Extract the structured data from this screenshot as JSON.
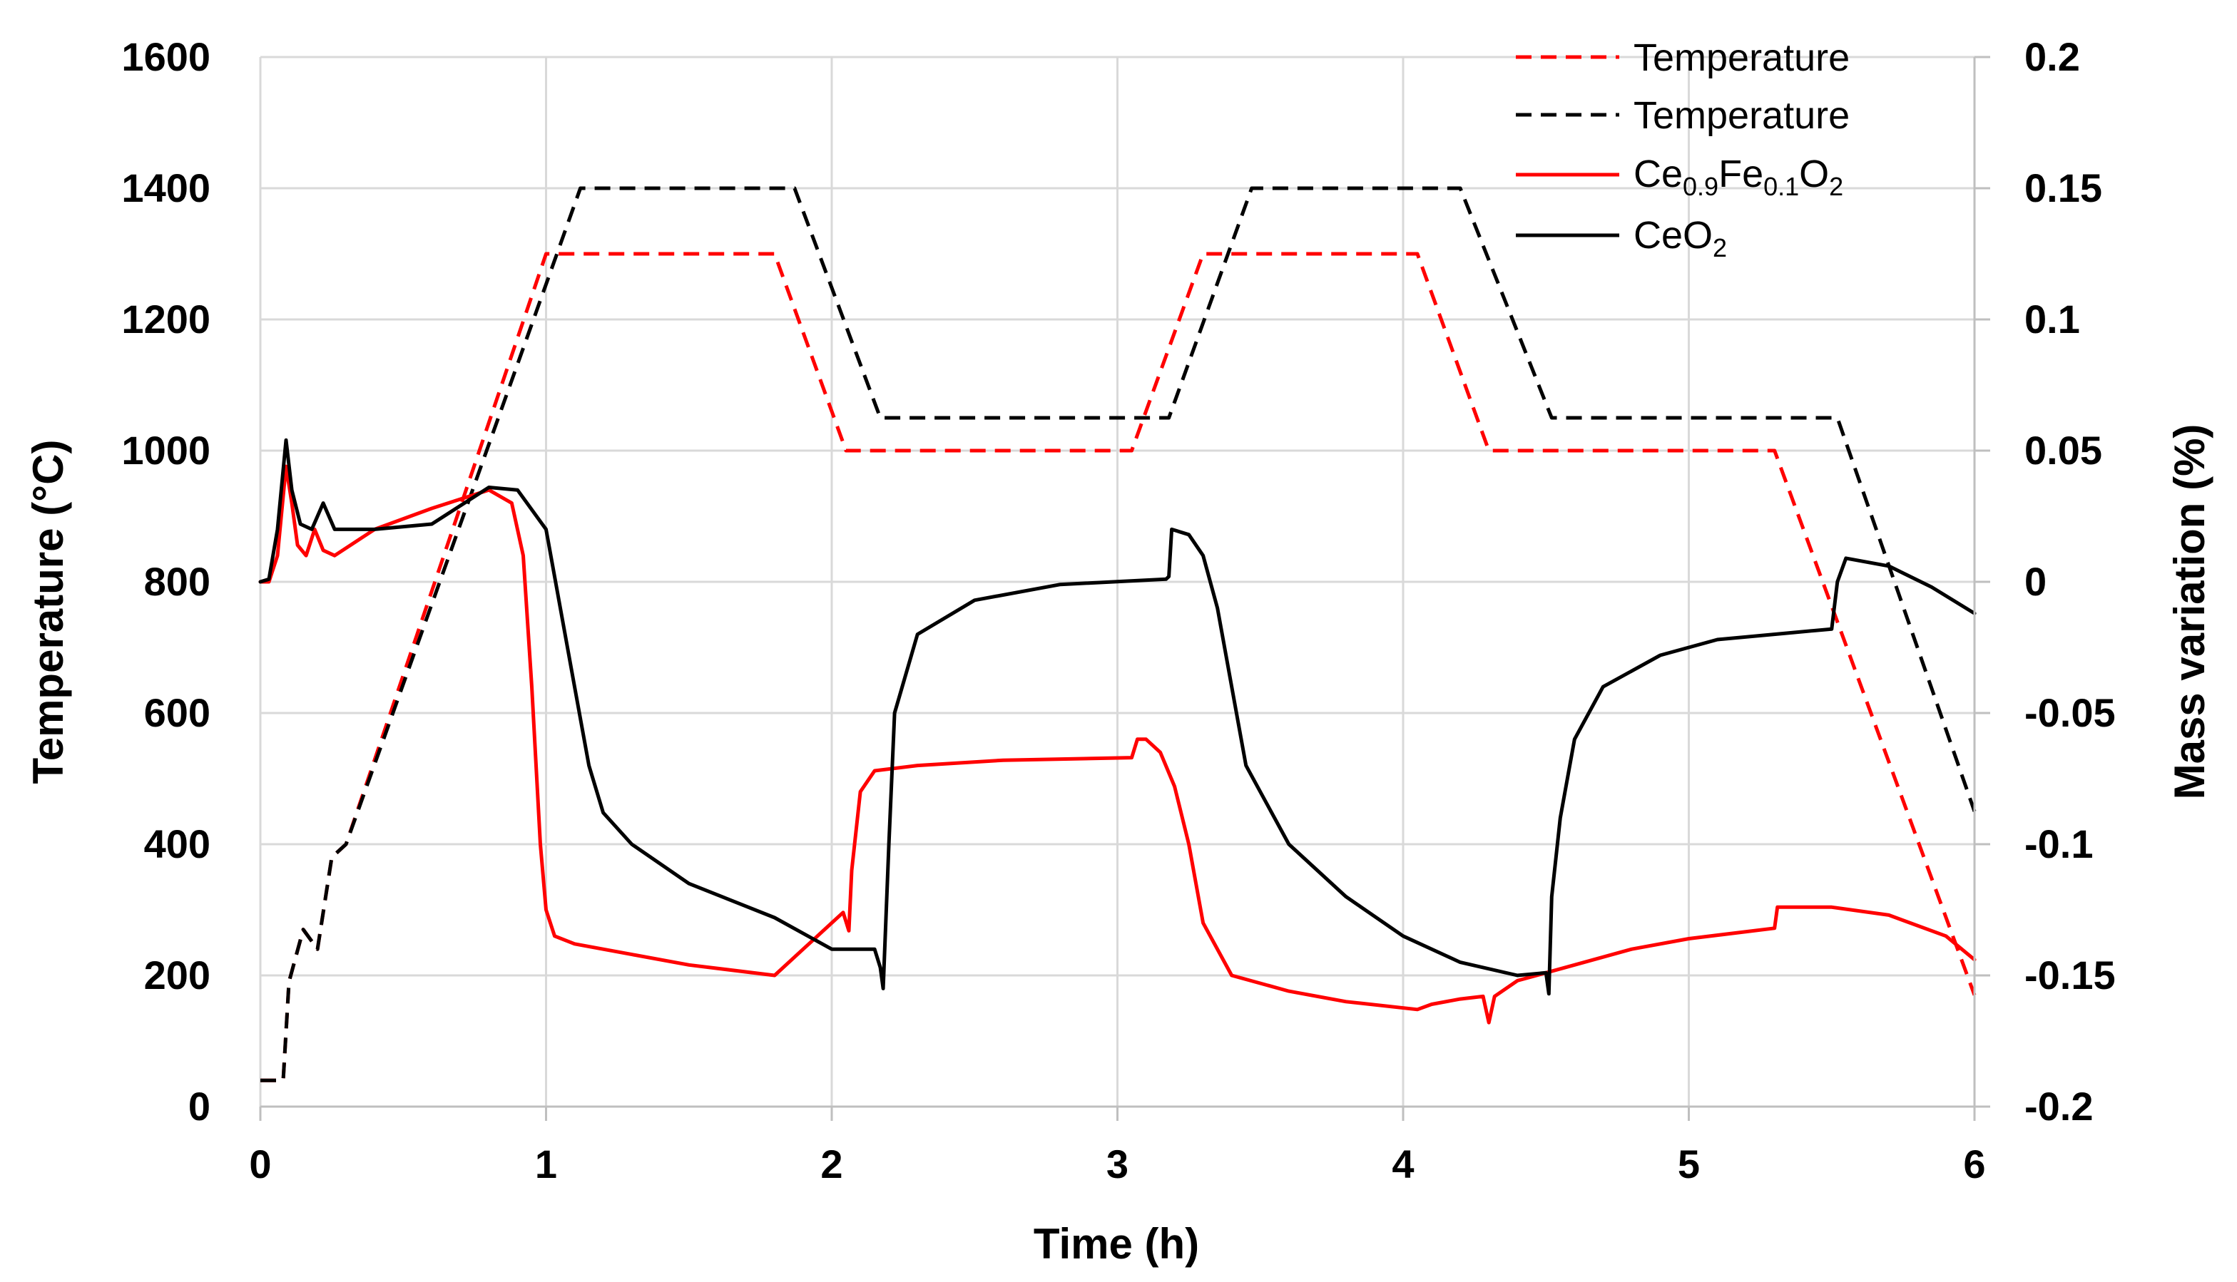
{
  "chart_data": {
    "type": "line",
    "title": "",
    "xlabel": "Time (h)",
    "ylabel_left": "Temperature (°C)",
    "ylabel_right": "Mass variation (%)",
    "xlim": [
      0,
      6
    ],
    "ylim_left": [
      0,
      1600
    ],
    "ylim_right": [
      -0.2,
      0.2
    ],
    "x_ticks": [
      "0",
      "1",
      "2",
      "3",
      "4",
      "5",
      "6"
    ],
    "y_left_ticks": [
      "0",
      "200",
      "400",
      "600",
      "800",
      "1000",
      "1200",
      "1400",
      "1600"
    ],
    "y_right_ticks": [
      "-0.2",
      "-0.15",
      "-0.1",
      "-0.05",
      "0",
      "0.05",
      "0.1",
      "0.15",
      "0.2"
    ],
    "grid": true,
    "legend_position": "top-right",
    "colors": {
      "red": "#ff0000",
      "black": "#000000",
      "grid": "#d9d9d9"
    },
    "series": [
      {
        "name": "Temperature",
        "legend_label": "Temperature",
        "axis": "left",
        "color": "#ff0000",
        "dashed": true,
        "points": [
          [
            0,
            40
          ],
          [
            0.08,
            40
          ],
          [
            0.1,
            190
          ],
          [
            0.15,
            270
          ],
          [
            0.2,
            240
          ],
          [
            0.25,
            380
          ],
          [
            0.3,
            400
          ],
          [
            1.0,
            1300
          ],
          [
            1.8,
            1300
          ],
          [
            2.05,
            1000
          ],
          [
            3.05,
            1000
          ],
          [
            3.3,
            1300
          ],
          [
            4.05,
            1300
          ],
          [
            4.3,
            1000
          ],
          [
            5.3,
            1000
          ],
          [
            6.0,
            170
          ]
        ]
      },
      {
        "name": "Temperature",
        "legend_label": "Temperature",
        "axis": "left",
        "color": "#000000",
        "dashed": true,
        "points": [
          [
            0,
            40
          ],
          [
            0.08,
            40
          ],
          [
            0.1,
            190
          ],
          [
            0.15,
            270
          ],
          [
            0.2,
            240
          ],
          [
            0.25,
            380
          ],
          [
            0.3,
            400
          ],
          [
            1.12,
            1400
          ],
          [
            1.87,
            1400
          ],
          [
            2.17,
            1050
          ],
          [
            3.18,
            1050
          ],
          [
            3.47,
            1400
          ],
          [
            4.2,
            1400
          ],
          [
            4.52,
            1050
          ],
          [
            5.52,
            1050
          ],
          [
            6.0,
            450
          ]
        ]
      },
      {
        "name": "Ce0.9Fe0.1O2",
        "legend_base": "Ce",
        "legend_sub1": "0.9",
        "legend_mid": "Fe",
        "legend_sub2": "0.1",
        "legend_end": "O",
        "legend_sub3": "2",
        "axis": "right",
        "color": "#ff0000",
        "dashed": false,
        "points": [
          [
            0,
            0
          ],
          [
            0.03,
            0.0
          ],
          [
            0.06,
            0.01
          ],
          [
            0.09,
            0.044
          ],
          [
            0.11,
            0.03
          ],
          [
            0.13,
            0.014
          ],
          [
            0.16,
            0.01
          ],
          [
            0.19,
            0.02
          ],
          [
            0.22,
            0.012
          ],
          [
            0.26,
            0.01
          ],
          [
            0.4,
            0.02
          ],
          [
            0.6,
            0.028
          ],
          [
            0.8,
            0.035
          ],
          [
            0.88,
            0.03
          ],
          [
            0.92,
            0.01
          ],
          [
            0.95,
            -0.04
          ],
          [
            0.98,
            -0.1
          ],
          [
            1.0,
            -0.125
          ],
          [
            1.03,
            -0.135
          ],
          [
            1.1,
            -0.138
          ],
          [
            1.3,
            -0.142
          ],
          [
            1.5,
            -0.146
          ],
          [
            1.8,
            -0.15
          ],
          [
            1.9,
            -0.14
          ],
          [
            2.0,
            -0.13
          ],
          [
            2.04,
            -0.126
          ],
          [
            2.06,
            -0.133
          ],
          [
            2.07,
            -0.11
          ],
          [
            2.1,
            -0.08
          ],
          [
            2.15,
            -0.072
          ],
          [
            2.3,
            -0.07
          ],
          [
            2.6,
            -0.068
          ],
          [
            3.05,
            -0.067
          ],
          [
            3.07,
            -0.06
          ],
          [
            3.1,
            -0.06
          ],
          [
            3.15,
            -0.065
          ],
          [
            3.2,
            -0.078
          ],
          [
            3.25,
            -0.1
          ],
          [
            3.3,
            -0.13
          ],
          [
            3.4,
            -0.15
          ],
          [
            3.6,
            -0.156
          ],
          [
            3.8,
            -0.16
          ],
          [
            4.05,
            -0.163
          ],
          [
            4.1,
            -0.161
          ],
          [
            4.2,
            -0.159
          ],
          [
            4.28,
            -0.158
          ],
          [
            4.3,
            -0.168
          ],
          [
            4.32,
            -0.158
          ],
          [
            4.4,
            -0.152
          ],
          [
            4.6,
            -0.146
          ],
          [
            4.8,
            -0.14
          ],
          [
            5.0,
            -0.136
          ],
          [
            5.3,
            -0.132
          ],
          [
            5.31,
            -0.124
          ],
          [
            5.5,
            -0.124
          ],
          [
            5.7,
            -0.127
          ],
          [
            5.9,
            -0.135
          ],
          [
            6.0,
            -0.144
          ]
        ]
      },
      {
        "name": "CeO2",
        "legend_base": "CeO",
        "legend_sub1": "2",
        "axis": "right",
        "color": "#000000",
        "dashed": false,
        "points": [
          [
            0,
            0
          ],
          [
            0.03,
            0.001
          ],
          [
            0.06,
            0.02
          ],
          [
            0.09,
            0.054
          ],
          [
            0.11,
            0.035
          ],
          [
            0.14,
            0.022
          ],
          [
            0.18,
            0.02
          ],
          [
            0.22,
            0.03
          ],
          [
            0.26,
            0.02
          ],
          [
            0.4,
            0.02
          ],
          [
            0.6,
            0.022
          ],
          [
            0.8,
            0.036
          ],
          [
            0.9,
            0.035
          ],
          [
            1.0,
            0.02
          ],
          [
            1.05,
            -0.01
          ],
          [
            1.1,
            -0.04
          ],
          [
            1.15,
            -0.07
          ],
          [
            1.2,
            -0.088
          ],
          [
            1.3,
            -0.1
          ],
          [
            1.5,
            -0.115
          ],
          [
            1.8,
            -0.128
          ],
          [
            2.0,
            -0.14
          ],
          [
            2.15,
            -0.14
          ],
          [
            2.17,
            -0.147
          ],
          [
            2.18,
            -0.155
          ],
          [
            2.2,
            -0.1
          ],
          [
            2.22,
            -0.05
          ],
          [
            2.3,
            -0.02
          ],
          [
            2.5,
            -0.007
          ],
          [
            2.8,
            -0.001
          ],
          [
            3.17,
            0.001
          ],
          [
            3.18,
            0.002
          ],
          [
            3.19,
            0.02
          ],
          [
            3.25,
            0.018
          ],
          [
            3.3,
            0.01
          ],
          [
            3.35,
            -0.01
          ],
          [
            3.4,
            -0.04
          ],
          [
            3.45,
            -0.07
          ],
          [
            3.6,
            -0.1
          ],
          [
            3.8,
            -0.12
          ],
          [
            4.0,
            -0.135
          ],
          [
            4.2,
            -0.145
          ],
          [
            4.4,
            -0.15
          ],
          [
            4.5,
            -0.149
          ],
          [
            4.51,
            -0.157
          ],
          [
            4.52,
            -0.12
          ],
          [
            4.55,
            -0.09
          ],
          [
            4.6,
            -0.06
          ],
          [
            4.7,
            -0.04
          ],
          [
            4.9,
            -0.028
          ],
          [
            5.1,
            -0.022
          ],
          [
            5.5,
            -0.018
          ],
          [
            5.52,
            -0.0
          ],
          [
            5.55,
            0.009
          ],
          [
            5.7,
            0.006
          ],
          [
            5.85,
            -0.002
          ],
          [
            6.0,
            -0.012
          ]
        ]
      }
    ]
  }
}
